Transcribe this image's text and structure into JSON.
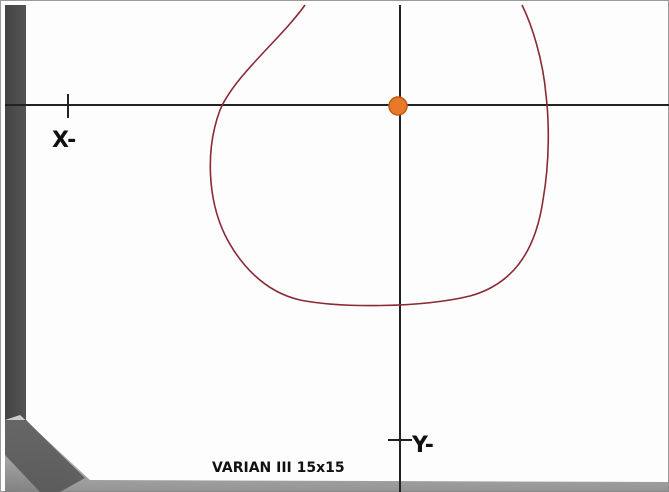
{
  "labels": {
    "x_axis_marker": "X-",
    "y_axis_marker": "Y-",
    "film_caption": "VARIAN III 15x15"
  }
}
